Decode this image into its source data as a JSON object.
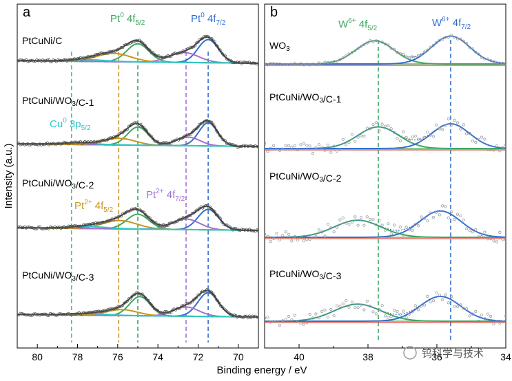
{
  "xlabel": "Binding energy / eV",
  "ylabel": "Intensity (a.u.)",
  "watermark_text": "钨科学与技术",
  "colors": {
    "envelope": "#333333",
    "raw": "#555555",
    "pt0": "#2f6fcf",
    "pt0_52": "#3aa860",
    "pt2_72": "#a36fd3",
    "pt2_52": "#c8961e",
    "cu": "#2ec6c6",
    "bg_green": "#4aa04a",
    "bg_red": "#d84a3a"
  },
  "chart_data": [
    {
      "panel_label": "a",
      "type": "line",
      "xlim": [
        81,
        69
      ],
      "x_ticks": [
        80,
        78,
        76,
        74,
        72,
        70
      ],
      "reference_lines": [
        {
          "x": 71.5,
          "color": "#2f6fcf"
        },
        {
          "x": 75.0,
          "color": "#3aa860"
        },
        {
          "x": 72.6,
          "color": "#a36fd3"
        },
        {
          "x": 75.95,
          "color": "#c8961e"
        },
        {
          "x": 78.3,
          "color": "#2ec6c6"
        }
      ],
      "annotations": [
        {
          "text": "Pt",
          "sup": "0",
          "tail": " 4f",
          "sub": "5/2",
          "color": "#3aa860"
        },
        {
          "text": "Pt",
          "sup": "0",
          "tail": " 4f",
          "sub": "7/2",
          "color": "#2f6fcf"
        },
        {
          "text": "Cu",
          "sup": "0",
          "tail": " 3p",
          "sub": "5/2",
          "color": "#2ec6c6"
        },
        {
          "text": "Pt",
          "sup": "2+",
          "tail": " 4f",
          "sub": "5/2",
          "color": "#c8961e"
        },
        {
          "text": "Pt",
          "sup": "2+",
          "tail": " 4f",
          "sub": "7/2",
          "color": "#a36fd3"
        }
      ],
      "series": [
        {
          "name": "PtCuNi/C",
          "peaks": [
            {
              "center": 71.5,
              "height": 0.7,
              "fwhm": 1.2,
              "color": "#2f6fcf"
            },
            {
              "center": 75.0,
              "height": 0.55,
              "fwhm": 1.3,
              "color": "#3aa860"
            },
            {
              "center": 72.7,
              "height": 0.3,
              "fwhm": 1.7,
              "color": "#a36fd3"
            },
            {
              "center": 76.2,
              "height": 0.25,
              "fwhm": 2.0,
              "color": "#c8961e"
            },
            {
              "center": 77.5,
              "height": 0.05,
              "fwhm": 2.2,
              "color": "#2ec6c6"
            }
          ]
        },
        {
          "name": "PtCuNi/WO3/C-1",
          "peaks": [
            {
              "center": 71.5,
              "height": 0.7,
              "fwhm": 1.1,
              "color": "#2f6fcf"
            },
            {
              "center": 75.0,
              "height": 0.55,
              "fwhm": 1.2,
              "color": "#3aa860"
            },
            {
              "center": 72.5,
              "height": 0.26,
              "fwhm": 1.4,
              "color": "#a36fd3"
            },
            {
              "center": 75.9,
              "height": 0.2,
              "fwhm": 1.8,
              "color": "#c8961e"
            },
            {
              "center": 78.0,
              "height": 0.05,
              "fwhm": 2.0,
              "color": "#2ec6c6"
            }
          ]
        },
        {
          "name": "PtCuNi/WO3/C-2",
          "peaks": [
            {
              "center": 71.5,
              "height": 0.62,
              "fwhm": 1.2,
              "color": "#2f6fcf"
            },
            {
              "center": 75.0,
              "height": 0.45,
              "fwhm": 1.3,
              "color": "#3aa860"
            },
            {
              "center": 72.6,
              "height": 0.32,
              "fwhm": 1.6,
              "color": "#a36fd3"
            },
            {
              "center": 75.9,
              "height": 0.25,
              "fwhm": 2.0,
              "color": "#c8961e"
            },
            {
              "center": 77.5,
              "height": 0.06,
              "fwhm": 2.2,
              "color": "#2ec6c6"
            }
          ]
        },
        {
          "name": "PtCuNi/WO3/C-3",
          "peaks": [
            {
              "center": 71.5,
              "height": 0.72,
              "fwhm": 1.2,
              "color": "#2f6fcf"
            },
            {
              "center": 74.9,
              "height": 0.58,
              "fwhm": 1.2,
              "color": "#3aa860"
            },
            {
              "center": 72.6,
              "height": 0.28,
              "fwhm": 1.5,
              "color": "#a36fd3"
            },
            {
              "center": 75.8,
              "height": 0.18,
              "fwhm": 1.8,
              "color": "#c8961e"
            },
            {
              "center": 77.5,
              "height": 0.05,
              "fwhm": 2.2,
              "color": "#2ec6c6"
            }
          ]
        }
      ]
    },
    {
      "panel_label": "b",
      "type": "line",
      "xlim": [
        41,
        34
      ],
      "x_ticks": [
        40,
        38,
        36,
        34
      ],
      "x_tick_labels": [
        "40",
        "38",
        "36",
        "34"
      ],
      "reference_lines": [
        {
          "x": 37.7,
          "color": "#3aa860"
        },
        {
          "x": 35.6,
          "color": "#2f6fcf"
        }
      ],
      "annotations": [
        {
          "text": "W",
          "sup": "6+",
          "tail": " 4f",
          "sub": "5/2",
          "color": "#3aa860"
        },
        {
          "text": "W",
          "sup": "6+",
          "tail": " 4f",
          "sub": "7/2",
          "color": "#2f6fcf"
        }
      ],
      "series": [
        {
          "name": "WO3",
          "peaks": [
            {
              "center": 37.8,
              "height": 0.75,
              "fwhm": 1.3,
              "color": "#3aa860"
            },
            {
              "center": 35.6,
              "height": 0.9,
              "fwhm": 1.3,
              "color": "#2f6fcf"
            }
          ]
        },
        {
          "name": "PtCuNi/WO3/C-1",
          "peaks": [
            {
              "center": 37.7,
              "height": 0.7,
              "fwhm": 1.4,
              "color": "#3aa860"
            },
            {
              "center": 35.6,
              "height": 0.8,
              "fwhm": 1.3,
              "color": "#2f6fcf"
            }
          ]
        },
        {
          "name": "PtCuNi/WO3/C-2",
          "peaks": [
            {
              "center": 38.3,
              "height": 0.55,
              "fwhm": 1.6,
              "color": "#3aa860"
            },
            {
              "center": 35.9,
              "height": 0.85,
              "fwhm": 1.4,
              "color": "#2f6fcf"
            }
          ]
        },
        {
          "name": "PtCuNi/WO3/C-3",
          "peaks": [
            {
              "center": 38.3,
              "height": 0.55,
              "fwhm": 1.6,
              "color": "#3aa860"
            },
            {
              "center": 35.9,
              "height": 0.8,
              "fwhm": 1.4,
              "color": "#2f6fcf"
            }
          ]
        }
      ]
    }
  ]
}
